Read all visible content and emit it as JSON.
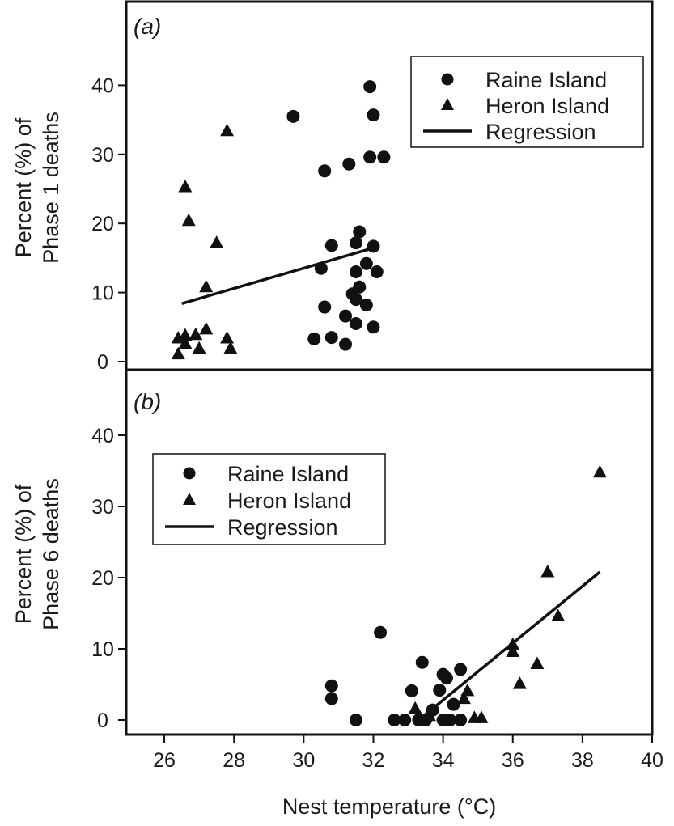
{
  "chart_data": [
    {
      "type": "scatter",
      "panel_label": "(a)",
      "ylabel_line1": "Percent (%) of",
      "ylabel_line2": "Phase 1 deaths",
      "xlim": [
        25,
        40
      ],
      "ylim": [
        -2,
        48
      ],
      "yticks": [
        0,
        10,
        20,
        30,
        40
      ],
      "legend": {
        "placement": "top-right",
        "entries": [
          "Raine Island",
          "Heron Island",
          "Regression"
        ]
      },
      "series": [
        {
          "name": "Raine Island",
          "marker": "circle",
          "points": [
            [
              29.7,
              35.5
            ],
            [
              30.6,
              27.6
            ],
            [
              31.3,
              28.6
            ],
            [
              31.9,
              39.8
            ],
            [
              32.0,
              35.7
            ],
            [
              31.9,
              29.6
            ],
            [
              32.3,
              29.6
            ],
            [
              30.8,
              16.8
            ],
            [
              31.5,
              17.2
            ],
            [
              31.6,
              18.8
            ],
            [
              32.0,
              16.7
            ],
            [
              30.5,
              13.5
            ],
            [
              31.8,
              14.2
            ],
            [
              31.5,
              13.0
            ],
            [
              32.1,
              13.0
            ],
            [
              31.4,
              9.8
            ],
            [
              31.6,
              10.8
            ],
            [
              31.5,
              9.0
            ],
            [
              31.8,
              8.2
            ],
            [
              30.6,
              7.9
            ],
            [
              31.2,
              6.6
            ],
            [
              31.5,
              5.5
            ],
            [
              32.0,
              5.0
            ],
            [
              30.3,
              3.3
            ],
            [
              30.8,
              3.5
            ],
            [
              31.2,
              2.5
            ]
          ]
        },
        {
          "name": "Heron Island",
          "marker": "triangle",
          "points": [
            [
              26.6,
              25.3
            ],
            [
              26.7,
              20.4
            ],
            [
              27.8,
              33.4
            ],
            [
              27.5,
              17.2
            ],
            [
              27.2,
              10.8
            ],
            [
              26.4,
              3.4
            ],
            [
              26.6,
              3.8
            ],
            [
              26.9,
              3.9
            ],
            [
              27.2,
              4.7
            ],
            [
              27.8,
              3.4
            ],
            [
              26.4,
              1.1
            ],
            [
              26.6,
              2.6
            ],
            [
              27.0,
              1.9
            ],
            [
              27.9,
              1.9
            ]
          ]
        }
      ],
      "regression": {
        "name": "Regression",
        "from": [
          26.5,
          8.4
        ],
        "to": [
          32.1,
          16.6
        ]
      }
    },
    {
      "type": "scatter",
      "panel_label": "(b)",
      "ylabel_line1": "Percent (%) of",
      "ylabel_line2": "Phase 6 deaths",
      "xlabel": "Nest temperature (°C)",
      "xlim": [
        25,
        40
      ],
      "ylim": [
        -2,
        48
      ],
      "xticks": [
        26,
        28,
        30,
        32,
        34,
        36,
        38,
        40
      ],
      "yticks": [
        0,
        10,
        20,
        30,
        40
      ],
      "legend": {
        "placement": "top-left",
        "entries": [
          "Raine Island",
          "Heron Island",
          "Regression"
        ]
      },
      "series": [
        {
          "name": "Raine Island",
          "marker": "circle",
          "points": [
            [
              30.8,
              4.8
            ],
            [
              30.8,
              3.0
            ],
            [
              31.5,
              0.0
            ],
            [
              32.2,
              12.3
            ],
            [
              33.4,
              8.1
            ],
            [
              33.1,
              4.1
            ],
            [
              34.0,
              6.4
            ],
            [
              34.1,
              5.9
            ],
            [
              34.5,
              7.1
            ],
            [
              33.9,
              4.2
            ],
            [
              34.3,
              2.2
            ],
            [
              33.7,
              1.4
            ],
            [
              32.6,
              0.0
            ],
            [
              32.9,
              0.0
            ],
            [
              33.3,
              0.0
            ],
            [
              33.5,
              0.0
            ],
            [
              34.0,
              0.0
            ],
            [
              34.2,
              0.0
            ],
            [
              34.5,
              0.0
            ]
          ]
        },
        {
          "name": "Heron Island",
          "marker": "triangle",
          "points": [
            [
              38.5,
              34.8
            ],
            [
              37.0,
              20.8
            ],
            [
              37.3,
              14.6
            ],
            [
              36.0,
              10.6
            ],
            [
              36.0,
              9.6
            ],
            [
              36.7,
              7.9
            ],
            [
              36.2,
              5.1
            ],
            [
              34.7,
              4.1
            ],
            [
              34.6,
              3.0
            ],
            [
              33.2,
              1.6
            ],
            [
              33.6,
              0.6
            ],
            [
              34.9,
              0.3
            ],
            [
              35.1,
              0.3
            ]
          ]
        }
      ],
      "regression": {
        "name": "Regression",
        "from": [
          33.3,
          0.0
        ],
        "to": [
          38.5,
          20.8
        ]
      }
    }
  ]
}
